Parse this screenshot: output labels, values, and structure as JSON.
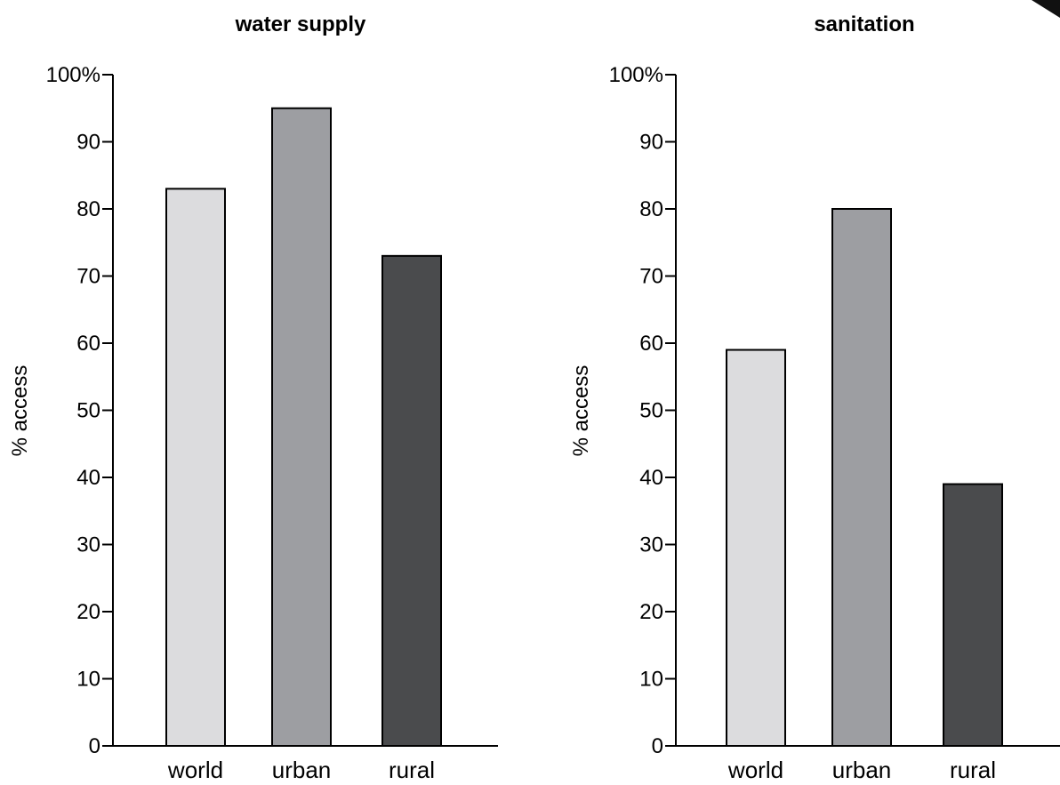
{
  "chart_data": [
    {
      "type": "bar",
      "title": "water supply",
      "ylabel": "% access",
      "xlabel": "",
      "categories": [
        "world",
        "urban",
        "rural"
      ],
      "values": [
        83,
        95,
        73
      ],
      "ylim": [
        0,
        100
      ],
      "yticks": [
        "0",
        "10",
        "20",
        "30",
        "40",
        "50",
        "60",
        "70",
        "80",
        "90",
        "100%"
      ],
      "bar_colors": [
        "#dcdcde",
        "#9d9ea2",
        "#4a4b4d"
      ],
      "grid": false,
      "legend": "none"
    },
    {
      "type": "bar",
      "title": "sanitation",
      "ylabel": "% access",
      "xlabel": "",
      "categories": [
        "world",
        "urban",
        "rural"
      ],
      "values": [
        59,
        80,
        39
      ],
      "ylim": [
        0,
        100
      ],
      "yticks": [
        "0",
        "10",
        "20",
        "30",
        "40",
        "50",
        "60",
        "70",
        "80",
        "90",
        "100%"
      ],
      "bar_colors": [
        "#dcdcde",
        "#9d9ea2",
        "#4a4b4d"
      ],
      "grid": false,
      "legend": "none"
    }
  ]
}
